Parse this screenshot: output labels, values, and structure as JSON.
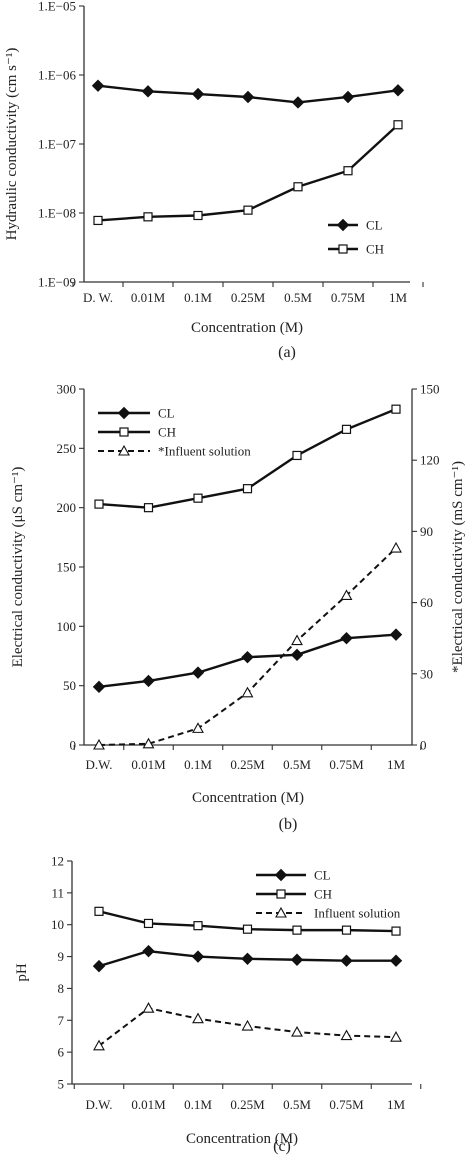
{
  "figure": {
    "panels": [
      "(a)",
      "(b)",
      "(c)"
    ]
  },
  "chart_data": [
    {
      "type": "line",
      "panel_label": "(a)",
      "categories": [
        "D. W.",
        "0.01M",
        "0.1M",
        "0.25M",
        "0.5M",
        "0.75M",
        "1M"
      ],
      "xlabel": "Concentration (M)",
      "ylabel": "Hydraulic conductivity (cm s⁻¹)",
      "yscale": "log",
      "ylim": [
        1e-09,
        1e-05
      ],
      "yticks": [
        1e-09,
        1e-08,
        1e-07,
        1e-06,
        1e-05
      ],
      "ytick_labels": [
        "1.E−09",
        "1.E−08",
        "1.E−07",
        "1.E−06",
        "1.E−05"
      ],
      "legend_position": "lower-right",
      "grid": false,
      "series": [
        {
          "name": "CL",
          "marker": "filled-diamond",
          "line": "solid",
          "color": "#111111",
          "values": [
            7e-07,
            5.8e-07,
            5.3e-07,
            4.8e-07,
            4e-07,
            4.8e-07,
            6e-07
          ]
        },
        {
          "name": "CH",
          "marker": "open-square",
          "line": "solid",
          "color": "#111111",
          "values": [
            7.8e-09,
            8.8e-09,
            9.2e-09,
            1.1e-08,
            2.4e-08,
            4.1e-08,
            1.9e-07
          ]
        }
      ]
    },
    {
      "type": "line",
      "panel_label": "(b)",
      "categories": [
        "D.W.",
        "0.01M",
        "0.1M",
        "0.25M",
        "0.5M",
        "0.75M",
        "1M"
      ],
      "xlabel": "Concentration (M)",
      "ylabel": "Electrical conductivity (μS cm⁻¹)",
      "ylabel_right": "*Electrical conductivity (mS cm⁻¹)",
      "ylim": [
        0,
        300
      ],
      "yticks": [
        0,
        50,
        100,
        150,
        200,
        250,
        300
      ],
      "ylim_right": [
        0,
        150
      ],
      "yticks_right": [
        0,
        30,
        60,
        90,
        120,
        150
      ],
      "legend_position": "top-left",
      "grid": false,
      "series": [
        {
          "name": "CL",
          "marker": "filled-diamond",
          "line": "solid",
          "color": "#111111",
          "axis": "left",
          "values": [
            49,
            54,
            61,
            74,
            76,
            90,
            93
          ]
        },
        {
          "name": "CH",
          "marker": "open-square",
          "line": "solid",
          "color": "#111111",
          "axis": "left",
          "values": [
            203,
            200,
            208,
            216,
            244,
            266,
            283
          ]
        },
        {
          "name": "*Influent solution",
          "marker": "open-triangle",
          "line": "dashed",
          "color": "#111111",
          "axis": "right",
          "values": [
            0,
            0.5,
            7,
            22,
            44,
            63,
            83
          ]
        }
      ]
    },
    {
      "type": "line",
      "panel_label": "(c)",
      "categories": [
        "D.W.",
        "0.01M",
        "0.1M",
        "0.25M",
        "0.5M",
        "0.75M",
        "1M"
      ],
      "xlabel": "Concentration (M)",
      "ylabel": "pH",
      "ylim": [
        5,
        12
      ],
      "yticks": [
        5,
        6,
        7,
        8,
        9,
        10,
        11,
        12
      ],
      "legend_position": "top-right",
      "grid": false,
      "series": [
        {
          "name": "CL",
          "marker": "filled-diamond",
          "line": "solid",
          "color": "#111111",
          "values": [
            8.7,
            9.17,
            9.0,
            8.93,
            8.9,
            8.87,
            8.87
          ]
        },
        {
          "name": "CH",
          "marker": "open-square",
          "line": "solid",
          "color": "#111111",
          "values": [
            10.42,
            10.04,
            9.97,
            9.86,
            9.83,
            9.83,
            9.8
          ]
        },
        {
          "name": "Influent solution",
          "marker": "open-triangle",
          "line": "dashed",
          "color": "#111111",
          "values": [
            6.2,
            7.38,
            7.05,
            6.82,
            6.63,
            6.52,
            6.47
          ]
        }
      ]
    }
  ]
}
